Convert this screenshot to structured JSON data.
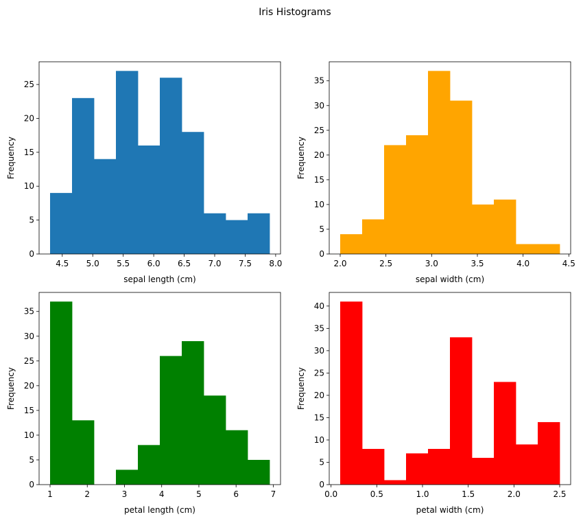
{
  "figure": {
    "suptitle": "Iris Histograms"
  },
  "chart_data": [
    {
      "type": "bar",
      "histogram": true,
      "xlabel": "sepal length (cm)",
      "ylabel": "Frequency",
      "color": "#1f77b4",
      "bin_edges": [
        4.3,
        4.66,
        5.02,
        5.38,
        5.74,
        6.1,
        6.46,
        6.82,
        7.18,
        7.54,
        7.9
      ],
      "values": [
        9,
        23,
        14,
        27,
        16,
        26,
        18,
        6,
        5,
        6
      ],
      "xlim": [
        4.12,
        8.08
      ],
      "ylim": [
        0,
        28.35
      ],
      "xticks": [
        4.5,
        5.0,
        5.5,
        6.0,
        6.5,
        7.0,
        7.5,
        8.0
      ],
      "xtick_labels": [
        "4.5",
        "5.0",
        "5.5",
        "6.0",
        "6.5",
        "7.0",
        "7.5",
        "8.0"
      ],
      "yticks": [
        0,
        5,
        10,
        15,
        20,
        25
      ],
      "ytick_labels": [
        "0",
        "5",
        "10",
        "15",
        "20",
        "25"
      ]
    },
    {
      "type": "bar",
      "histogram": true,
      "xlabel": "sepal width (cm)",
      "ylabel": "Frequency",
      "color": "#ffa500",
      "bin_edges": [
        2.0,
        2.24,
        2.48,
        2.72,
        2.96,
        3.2,
        3.44,
        3.68,
        3.92,
        4.16,
        4.4
      ],
      "values": [
        4,
        7,
        22,
        24,
        37,
        31,
        10,
        11,
        2,
        2
      ],
      "xlim": [
        1.88,
        4.52
      ],
      "ylim": [
        0,
        38.85
      ],
      "xticks": [
        2.0,
        2.5,
        3.0,
        3.5,
        4.0,
        4.5
      ],
      "xtick_labels": [
        "2.0",
        "2.5",
        "3.0",
        "3.5",
        "4.0",
        "4.5"
      ],
      "yticks": [
        0,
        5,
        10,
        15,
        20,
        25,
        30,
        35
      ],
      "ytick_labels": [
        "0",
        "5",
        "10",
        "15",
        "20",
        "25",
        "30",
        "35"
      ]
    },
    {
      "type": "bar",
      "histogram": true,
      "xlabel": "petal length (cm)",
      "ylabel": "Frequency",
      "color": "#008000",
      "bin_edges": [
        1.0,
        1.59,
        2.18,
        2.77,
        3.36,
        3.95,
        4.54,
        5.13,
        5.72,
        6.31,
        6.9
      ],
      "values": [
        37,
        13,
        0,
        3,
        8,
        26,
        29,
        18,
        11,
        5
      ],
      "xlim": [
        0.705,
        7.195
      ],
      "ylim": [
        0,
        38.85
      ],
      "xticks": [
        1,
        2,
        3,
        4,
        5,
        6,
        7
      ],
      "xtick_labels": [
        "1",
        "2",
        "3",
        "4",
        "5",
        "6",
        "7"
      ],
      "yticks": [
        0,
        5,
        10,
        15,
        20,
        25,
        30,
        35
      ],
      "ytick_labels": [
        "0",
        "5",
        "10",
        "15",
        "20",
        "25",
        "30",
        "35"
      ]
    },
    {
      "type": "bar",
      "histogram": true,
      "xlabel": "petal width (cm)",
      "ylabel": "Frequency",
      "color": "#ff0000",
      "bin_edges": [
        0.1,
        0.34,
        0.58,
        0.82,
        1.06,
        1.3,
        1.54,
        1.78,
        2.02,
        2.26,
        2.5
      ],
      "values": [
        41,
        8,
        1,
        7,
        8,
        33,
        6,
        23,
        9,
        14
      ],
      "xlim": [
        -0.02,
        2.62
      ],
      "ylim": [
        0,
        43.05
      ],
      "xticks": [
        0.0,
        0.5,
        1.0,
        1.5,
        2.0,
        2.5
      ],
      "xtick_labels": [
        "0.0",
        "0.5",
        "1.0",
        "1.5",
        "2.0",
        "2.5"
      ],
      "yticks": [
        0,
        5,
        10,
        15,
        20,
        25,
        30,
        35,
        40
      ],
      "ytick_labels": [
        "0",
        "5",
        "10",
        "15",
        "20",
        "25",
        "30",
        "35",
        "40"
      ]
    }
  ]
}
